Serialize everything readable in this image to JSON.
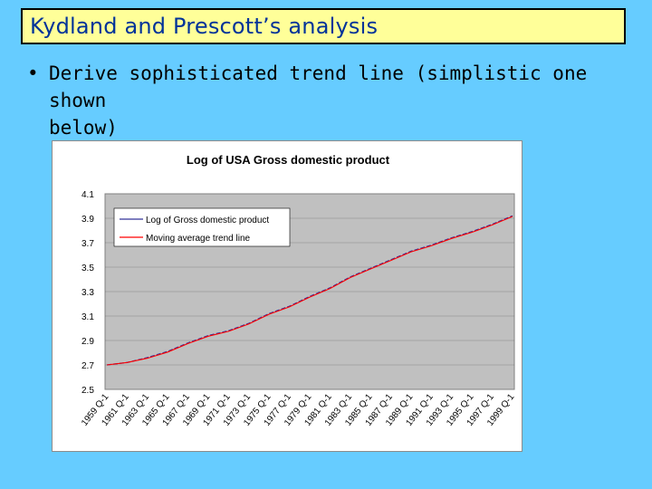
{
  "slide": {
    "title": "Kydland and Prescott’s analysis",
    "bullet_marker": "•",
    "bullet_line1": "Derive sophisticated trend line (simplistic one shown",
    "bullet_line2": "below)"
  },
  "colors": {
    "background": "#66ccff",
    "title_fill": "#ffff99",
    "title_text": "#003399",
    "plot_area": "#c0c0c0",
    "series_gdp": "#333399",
    "series_trend": "#ff0000"
  },
  "chart_data": {
    "type": "line",
    "title": "Log of USA Gross domestic product",
    "xlabel": "",
    "ylabel": "",
    "ylim": [
      2.5,
      4.1
    ],
    "yticks": [
      "4.1",
      "3.9",
      "3.7",
      "3.5",
      "3.3",
      "3.1",
      "2.9",
      "2.7",
      "2.5"
    ],
    "categories": [
      "1959 Q-1",
      "1961 Q-1",
      "1963 Q-1",
      "1965 Q-1",
      "1967 Q-1",
      "1969 Q-1",
      "1971 Q-1",
      "1973 Q-1",
      "1975 Q-1",
      "1977 Q-1",
      "1979 Q-1",
      "1981 Q-1",
      "1983 Q-1",
      "1985 Q-1",
      "1987 Q-1",
      "1989 Q-1",
      "1991 Q-1",
      "1993 Q-1",
      "1995 Q-1",
      "1997 Q-1",
      "1999 Q-1"
    ],
    "grid": true,
    "legend": "top-left",
    "series": [
      {
        "name": "Log of Gross domestic product",
        "values": [
          2.7,
          2.72,
          2.76,
          2.81,
          2.88,
          2.94,
          2.98,
          3.04,
          3.12,
          3.18,
          3.26,
          3.33,
          3.42,
          3.49,
          3.56,
          3.63,
          3.68,
          3.74,
          3.79,
          3.85,
          3.92
        ]
      },
      {
        "name": "Moving average trend line",
        "values": [
          2.7,
          2.72,
          2.755,
          2.805,
          2.875,
          2.935,
          2.975,
          3.035,
          3.115,
          3.175,
          3.255,
          3.325,
          3.415,
          3.485,
          3.555,
          3.625,
          3.675,
          3.735,
          3.785,
          3.845,
          3.915
        ]
      }
    ]
  }
}
